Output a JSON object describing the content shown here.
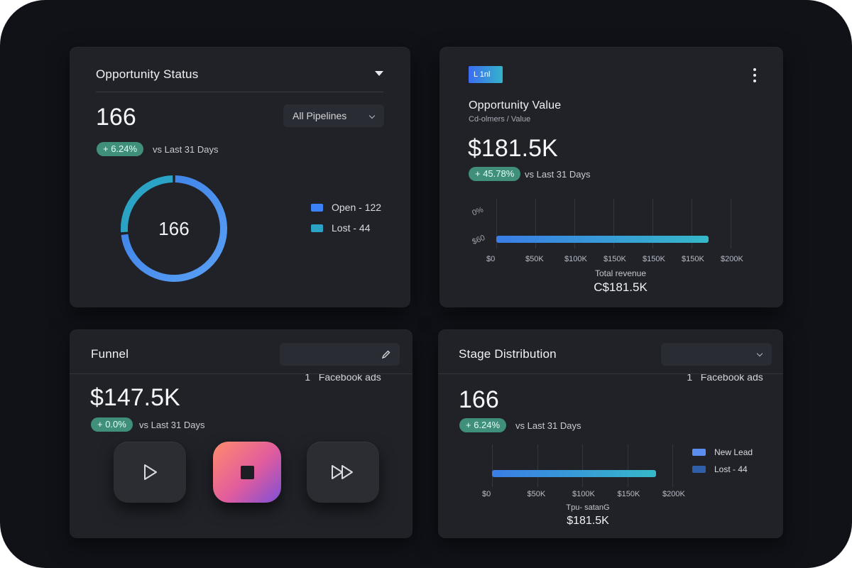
{
  "opportunity_status": {
    "title": "Opportunity Status",
    "count": "166",
    "pipeline_select": "All Pipelines",
    "change": "+ 6.24%",
    "comparison": "vs Last 31 Days",
    "donut_center": "166",
    "legend": [
      {
        "label": "Open - 122",
        "value": 122,
        "color": "#3b82f6"
      },
      {
        "label": "Lost - 44",
        "value": 44,
        "color": "#2aa3c4"
      }
    ]
  },
  "opportunity_value": {
    "badge": "L 1nl",
    "title": "Opportunity Value",
    "subtitle": "Cd-olmers / Value",
    "amount": "$181.5K",
    "change": "+ 45.78%",
    "comparison": "vs Last 31 Days",
    "y_ticks": [
      "0%",
      "$60"
    ],
    "x_ticks": [
      "$0",
      "$50K",
      "$100K",
      "$150K",
      "$150K",
      "$150K",
      "$200K"
    ],
    "footer_label": "Total revenue",
    "footer_value": "C$181.5K"
  },
  "funnel": {
    "title": "Funnel",
    "source_select": "1   Facebook ads",
    "amount": "$147.5K",
    "change": "+ 0.0%",
    "comparison": "vs Last 31 Days"
  },
  "stage_distribution": {
    "title": "Stage Distribution",
    "source_select": "1   Facebook ads",
    "count": "166",
    "change": "+ 6.24%",
    "comparison": "vs Last 31 Days",
    "legend": [
      {
        "label": "New Lead",
        "color": "#5b8def"
      },
      {
        "label": "Lost - 44",
        "color": "#2f5fa8"
      }
    ],
    "x_ticks": [
      "$0",
      "$50K",
      "$100K",
      "$150K",
      "$200K"
    ],
    "footer_label": "Tpu- satanG",
    "footer_value": "$181.5K"
  },
  "chart_data": [
    {
      "type": "pie",
      "title": "Opportunity Status",
      "categories": [
        "Open",
        "Lost"
      ],
      "values": [
        122,
        44
      ]
    },
    {
      "type": "bar",
      "title": "Opportunity Value",
      "categories": [
        "Total revenue"
      ],
      "values": [
        181.5
      ],
      "xlabel": "",
      "ylabel": "",
      "xlim": [
        0,
        200
      ],
      "unit": "$K"
    },
    {
      "type": "bar",
      "title": "Stage Distribution",
      "categories": [
        "New Lead"
      ],
      "values": [
        181.5
      ],
      "xlim": [
        0,
        200
      ],
      "unit": "$K"
    }
  ]
}
